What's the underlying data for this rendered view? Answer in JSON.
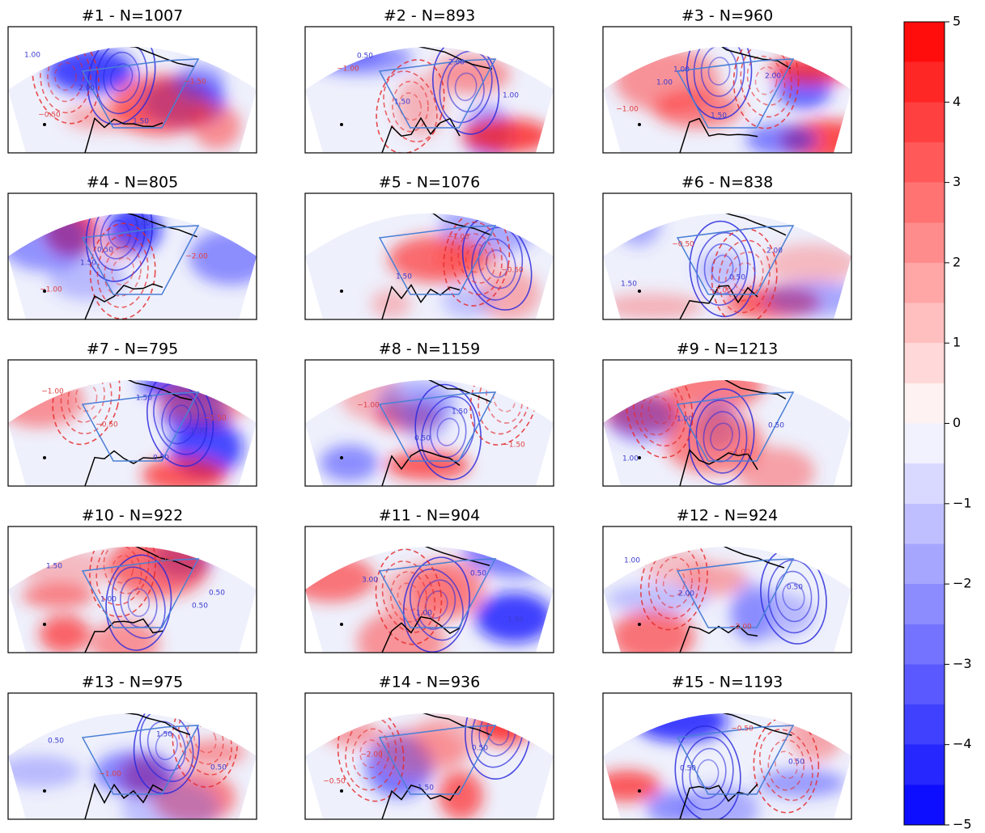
{
  "chart_data": {
    "type": "contour-map-grid",
    "panels": [
      {
        "title": "#1 - N=1007",
        "contour_labels": [
          "1.00",
          "2.00",
          "1.50",
          "−1.50",
          "−0.50"
        ]
      },
      {
        "title": "#2 - N=893",
        "contour_labels": [
          "−1.00",
          "1.50",
          "2.00",
          "1.00",
          "0.50"
        ]
      },
      {
        "title": "#3 - N=960",
        "contour_labels": [
          "1.00",
          "1.50",
          "2.00",
          "−1.00",
          "1.00"
        ]
      },
      {
        "title": "#4 - N=805",
        "contour_labels": [
          "1.50",
          "2.00",
          "−2.00",
          "−1.00",
          "0.50"
        ]
      },
      {
        "title": "#5 - N=1076",
        "contour_labels": [
          "1.50",
          "−1.00",
          "−0.50"
        ]
      },
      {
        "title": "#6 - N=838",
        "contour_labels": [
          "−1.00",
          "2.00",
          "1.50",
          "−0.50",
          "0.50"
        ]
      },
      {
        "title": "#7 - N=795",
        "contour_labels": [
          "1.50",
          "1.00",
          "−1.00",
          "−0.50",
          "0.50",
          "−1.50"
        ]
      },
      {
        "title": "#8 - N=1159",
        "contour_labels": [
          "1.50",
          "−1.50",
          "−1.00",
          "0.50"
        ]
      },
      {
        "title": "#9 - N=1213",
        "contour_labels": [
          "0.50",
          "1.00",
          "1.00",
          "−1.00"
        ]
      },
      {
        "title": "#10 - N=922",
        "contour_labels": [
          "0.50",
          "1.50",
          "1.00",
          "−1.00",
          "0.50"
        ]
      },
      {
        "title": "#11 - N=904",
        "contour_labels": [
          "1.50",
          "3.00",
          "1.00",
          "0.50"
        ]
      },
      {
        "title": "#12 - N=924",
        "contour_labels": [
          "1.00",
          "2.00",
          "−2.00",
          "0.50"
        ]
      },
      {
        "title": "#13 - N=975",
        "contour_labels": [
          "0.50",
          "−1.00",
          "1.50",
          "0.50"
        ]
      },
      {
        "title": "#14 - N=936",
        "contour_labels": [
          "−2.00",
          "1.50",
          "0.50",
          "−0.50"
        ]
      },
      {
        "title": "#15 - N=1193",
        "contour_labels": [
          "0.50",
          "−0.50",
          "0.50"
        ]
      }
    ],
    "colorbar": {
      "colors": [
        "#0000ff",
        "#ffffff",
        "#ff0000"
      ],
      "ylim": [
        -5,
        5
      ],
      "yticks": [
        {
          "value": -5,
          "label": "−5"
        },
        {
          "value": -4,
          "label": "−4"
        },
        {
          "value": -3,
          "label": "−3"
        },
        {
          "value": -2,
          "label": "−2"
        },
        {
          "value": -1,
          "label": "−1"
        },
        0,
        1,
        2,
        3,
        4,
        5
      ]
    }
  }
}
